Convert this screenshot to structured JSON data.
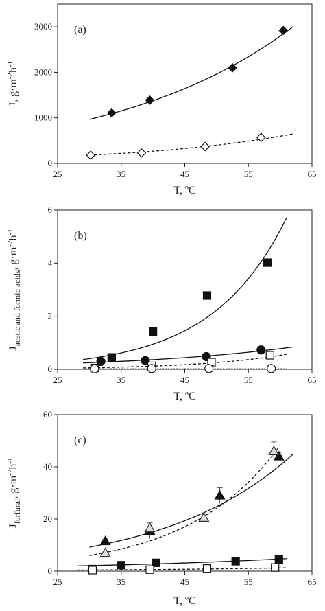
{
  "chart_data": [
    {
      "type": "scatter",
      "panel_label": "(a)",
      "xlabel": "T, ºC",
      "ylabel_main": "J, g·m",
      "ylabel_sup1": "-2",
      "ylabel_mid": "h",
      "ylabel_sup2": "-1",
      "xlim": [
        25,
        65
      ],
      "ylim": [
        0,
        3500
      ],
      "xticks": [
        "25",
        "35",
        "45",
        "55",
        "65"
      ],
      "yticks": [
        "0",
        "1000",
        "2000",
        "3000"
      ],
      "series": [
        {
          "marker": "diamond",
          "filled": true,
          "line": "solid",
          "x": [
            33.5,
            39.5,
            52.5,
            60.5
          ],
          "y": [
            1110,
            1390,
            2100,
            2920
          ],
          "fit": {
            "from": 30,
            "to": 62,
            "a": 967,
            "b": 0.0354,
            "x0": 30
          }
        },
        {
          "marker": "diamond",
          "filled": false,
          "line": "dashed",
          "x": [
            30.2,
            38.2,
            48.2,
            57.0
          ],
          "y": [
            180,
            230,
            370,
            570
          ],
          "fit": {
            "from": 30,
            "to": 62,
            "a": 180,
            "b": 0.04,
            "x0": 30
          }
        }
      ]
    },
    {
      "type": "scatter",
      "panel_label": "(b)",
      "xlabel": "T, ºC",
      "ylabel_main": "J",
      "ylabel_subscript": "acetic  and formic acids",
      "ylabel_tail": ", g·m",
      "ylabel_sup1": "-2",
      "ylabel_mid": "h",
      "ylabel_sup2": "-1",
      "xlim": [
        25,
        65
      ],
      "ylim": [
        0,
        6
      ],
      "xticks": [
        "25",
        "35",
        "45",
        "55",
        "65"
      ],
      "yticks": [
        "0",
        "2",
        "4",
        "6"
      ],
      "series": [
        {
          "marker": "square",
          "filled": true,
          "line": "solid",
          "x": [
            33.5,
            40.0,
            48.5,
            58.0
          ],
          "y": [
            0.45,
            1.42,
            2.78,
            4.02
          ],
          "fit": {
            "from": 29,
            "to": 61,
            "a": 0.37,
            "b": 0.0855,
            "x0": 29
          }
        },
        {
          "marker": "circle",
          "filled": true,
          "line": "solid",
          "x": [
            31.8,
            38.8,
            48.4,
            57.0
          ],
          "y": [
            0.3,
            0.33,
            0.48,
            0.73
          ],
          "fit": {
            "from": 29,
            "to": 62,
            "a": 0.24,
            "b": 0.038,
            "x0": 29
          }
        },
        {
          "marker": "square",
          "filled": false,
          "line": "dashed",
          "x": [
            30.8,
            39.8,
            49.2,
            58.4
          ],
          "y": [
            0.05,
            0.13,
            0.27,
            0.53
          ],
          "fit": {
            "from": 29,
            "to": 61,
            "a": 0.055,
            "b": 0.073,
            "x0": 29
          }
        },
        {
          "marker": "circle",
          "filled": false,
          "line": "dotted",
          "x": [
            30.8,
            39.8,
            48.8,
            58.6
          ],
          "y": [
            0.02,
            0.03,
            0.03,
            0.03
          ],
          "fit": {
            "from": 29,
            "to": 61,
            "a": 0.02,
            "b": 0.0,
            "x0": 29
          }
        }
      ]
    },
    {
      "type": "scatter",
      "panel_label": "(c)",
      "xlabel": "T, ºC",
      "ylabel_main": "J",
      "ylabel_subscript": "furfural",
      "ylabel_tail": ", g·m",
      "ylabel_sup1": "-2",
      "ylabel_mid": "h",
      "ylabel_sup2": "-1",
      "xlim": [
        25,
        65
      ],
      "ylim": [
        0,
        60
      ],
      "xticks": [
        "25",
        "35",
        "45",
        "55",
        "65"
      ],
      "yticks": [
        "0",
        "20",
        "40",
        "60"
      ],
      "series": [
        {
          "marker": "triangle",
          "filled": true,
          "line": "solid",
          "x": [
            32.5,
            39.5,
            50.5,
            59.8
          ],
          "y": [
            11.5,
            15.5,
            29.0,
            44.0
          ],
          "err": [
            0.8,
            3.0,
            3.0,
            1.5
          ],
          "fit": {
            "from": 30,
            "to": 62,
            "a": 9.2,
            "b": 0.0495,
            "x0": 30
          }
        },
        {
          "marker": "triangle",
          "filled": false,
          "line": "dashed",
          "x": [
            32.5,
            39.5,
            48.0,
            59.0
          ],
          "y": [
            7.0,
            16.5,
            20.5,
            46.0
          ],
          "err": [
            0.8,
            1.5,
            1.5,
            3.5
          ],
          "fit": {
            "from": 30,
            "to": 60,
            "a": 6.0,
            "b": 0.0695,
            "x0": 30
          }
        },
        {
          "marker": "square",
          "filled": true,
          "line": "solid",
          "x": [
            30.5,
            35.0,
            40.5,
            53.0,
            59.8
          ],
          "y": [
            0.8,
            2.3,
            3.2,
            3.8,
            4.5
          ],
          "fit": {
            "from": 28,
            "to": 61,
            "a": 2.0,
            "b": 0.0266,
            "x0": 28
          }
        },
        {
          "marker": "square",
          "filled": false,
          "line": "dashed",
          "x": [
            30.5,
            39.5,
            48.5,
            59.2
          ],
          "y": [
            0.4,
            0.6,
            1.0,
            1.4
          ],
          "fit": {
            "from": 28,
            "to": 61,
            "a": 0.4,
            "b": 0.035,
            "x0": 28
          }
        }
      ]
    }
  ]
}
